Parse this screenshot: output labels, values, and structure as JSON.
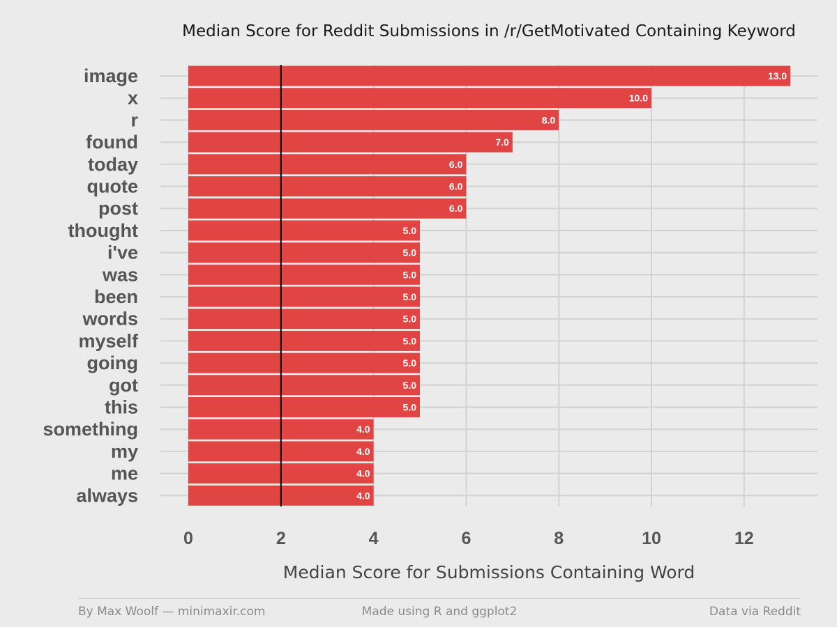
{
  "chart_data": {
    "type": "bar",
    "orientation": "horizontal",
    "title": "Median Score for Reddit Submissions in /r/GetMotivated Containing Keyword",
    "xlabel": "Median Score for Submissions Containing Word",
    "ylabel": "",
    "categories": [
      "image",
      "x",
      "r",
      "found",
      "today",
      "quote",
      "post",
      "thought",
      "i've",
      "was",
      "been",
      "words",
      "myself",
      "going",
      "got",
      "this",
      "something",
      "my",
      "me",
      "always"
    ],
    "values": [
      13,
      10,
      8,
      7,
      6,
      6,
      6,
      5,
      5,
      5,
      5,
      5,
      5,
      5,
      5,
      5,
      4,
      4,
      4,
      4
    ],
    "data_labels": [
      "13.0",
      "10.0",
      "8.0",
      "7.0",
      "6.0",
      "6.0",
      "6.0",
      "5.0",
      "5.0",
      "5.0",
      "5.0",
      "5.0",
      "5.0",
      "5.0",
      "5.0",
      "5.0",
      "4.0",
      "4.0",
      "4.0",
      "4.0"
    ],
    "xlim": [
      0,
      13.5
    ],
    "x_ticks": [
      0,
      2,
      4,
      6,
      8,
      10,
      12
    ],
    "reference_line": 2,
    "grid": true,
    "bar_color": "#e04543",
    "reference_line_color": "#000000"
  },
  "footer": {
    "left": "By Max Woolf — minimaxir.com",
    "center": "Made using R and ggplot2",
    "right": "Data via Reddit"
  }
}
